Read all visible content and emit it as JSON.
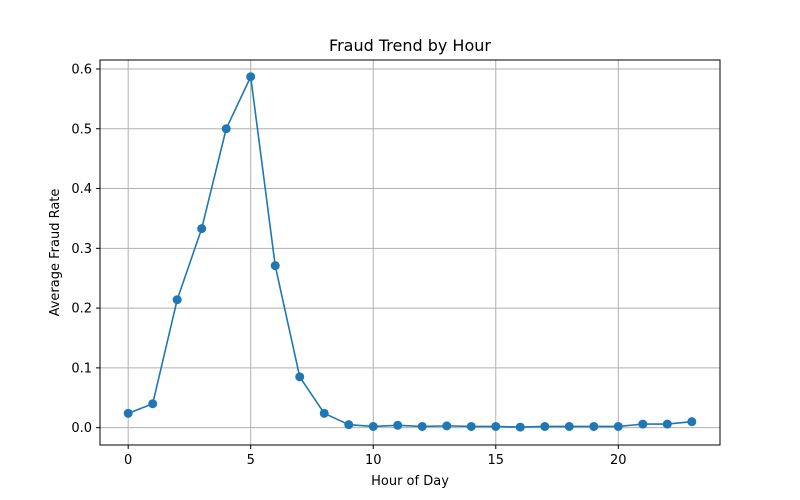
{
  "chart_data": {
    "type": "line",
    "title": "Fraud Trend by Hour",
    "xlabel": "Hour of Day",
    "ylabel": "Average Fraud Rate",
    "xlim": [
      -1.15,
      24.15
    ],
    "ylim": [
      -0.029,
      0.615
    ],
    "x_ticks": [
      0,
      5,
      10,
      15,
      20
    ],
    "y_ticks": [
      0.0,
      0.1,
      0.2,
      0.3,
      0.4,
      0.5,
      0.6
    ],
    "y_tick_labels": [
      "0.0",
      "0.1",
      "0.2",
      "0.3",
      "0.4",
      "0.5",
      "0.6"
    ],
    "x_tick_labels": [
      "0",
      "5",
      "10",
      "15",
      "20"
    ],
    "grid": true,
    "marker": "circle",
    "series_color": "#1f77b4",
    "grid_color": "#b0b0b0",
    "x": [
      0,
      1,
      2,
      3,
      4,
      5,
      6,
      7,
      8,
      9,
      10,
      11,
      12,
      13,
      14,
      15,
      16,
      17,
      18,
      19,
      20,
      21,
      22,
      23
    ],
    "values": [
      0.024,
      0.04,
      0.214,
      0.333,
      0.5,
      0.587,
      0.271,
      0.085,
      0.024,
      0.005,
      0.002,
      0.004,
      0.002,
      0.003,
      0.002,
      0.002,
      0.001,
      0.002,
      0.002,
      0.002,
      0.002,
      0.006,
      0.006,
      0.01
    ]
  }
}
